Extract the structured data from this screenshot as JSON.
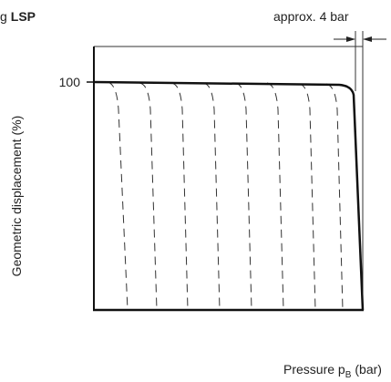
{
  "header": {
    "title_prefix": "g",
    "title_bold": "LSP"
  },
  "annotation": "approx. 4 bar",
  "axis": {
    "y_tick": "100",
    "y_label": "Geometric displacement (%)",
    "x_label_main": "Pressure p",
    "x_label_sub": "B",
    "x_label_unit": "(bar)"
  }
}
